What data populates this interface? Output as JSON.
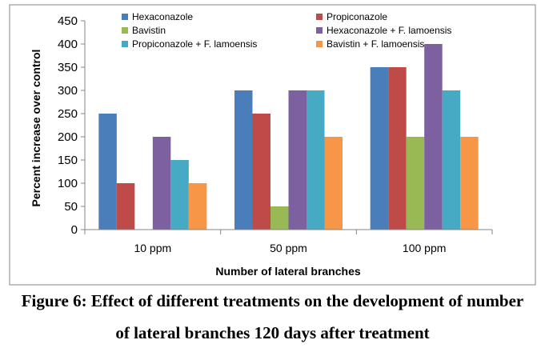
{
  "chart_data": {
    "type": "bar",
    "title": "",
    "categories": [
      "10 ppm",
      "50 ppm",
      "100 ppm"
    ],
    "series": [
      {
        "name": "Hexaconazole",
        "color": "#4a7ebb",
        "values": [
          250,
          300,
          350
        ]
      },
      {
        "name": "Propiconazole",
        "color": "#be4b48",
        "values": [
          100,
          250,
          350
        ]
      },
      {
        "name": "Bavistin",
        "color": "#98b954",
        "values": [
          0,
          50,
          200
        ]
      },
      {
        "name": "Hexaconazole + F. lamoensis",
        "color": "#7d60a0",
        "values": [
          200,
          300,
          400
        ]
      },
      {
        "name": "Propiconazole + F. lamoensis",
        "color": "#46aac5",
        "values": [
          150,
          300,
          300
        ]
      },
      {
        "name": "Bavistin + F. lamoensis",
        "color": "#f79646",
        "values": [
          100,
          200,
          200
        ]
      }
    ],
    "xlabel": "Number of lateral branches",
    "ylabel": "Percent increase over control",
    "ylim": [
      0,
      450
    ],
    "yticks": [
      0,
      50,
      100,
      150,
      200,
      250,
      300,
      350,
      400,
      450
    ],
    "grid": false,
    "legend": "top, two columns"
  },
  "caption": {
    "line1": "Figure 6: Effect of different treatments on the development of number",
    "line2": "of lateral branches 120 days after treatment"
  }
}
